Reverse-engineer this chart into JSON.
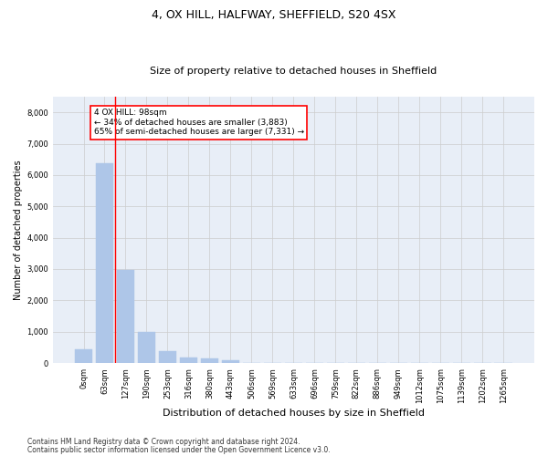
{
  "title": "4, OX HILL, HALFWAY, SHEFFIELD, S20 4SX",
  "subtitle": "Size of property relative to detached houses in Sheffield",
  "xlabel": "Distribution of detached houses by size in Sheffield",
  "ylabel": "Number of detached properties",
  "footnote1": "Contains HM Land Registry data © Crown copyright and database right 2024.",
  "footnote2": "Contains public sector information licensed under the Open Government Licence v3.0.",
  "bar_labels": [
    "0sqm",
    "63sqm",
    "127sqm",
    "190sqm",
    "253sqm",
    "316sqm",
    "380sqm",
    "443sqm",
    "506sqm",
    "569sqm",
    "633sqm",
    "696sqm",
    "759sqm",
    "822sqm",
    "886sqm",
    "949sqm",
    "1012sqm",
    "1075sqm",
    "1139sqm",
    "1202sqm",
    "1265sqm"
  ],
  "bar_values": [
    430,
    6390,
    2980,
    980,
    390,
    170,
    140,
    100,
    0,
    0,
    0,
    0,
    0,
    0,
    0,
    0,
    0,
    0,
    0,
    0,
    0
  ],
  "bar_color": "#aec6e8",
  "bar_edgecolor": "#aec6e8",
  "grid_color": "#cccccc",
  "bg_color": "#e8eef7",
  "red_line_x": 1.5,
  "annotation_text": "4 OX HILL: 98sqm\n← 34% of detached houses are smaller (3,883)\n65% of semi-detached houses are larger (7,331) →",
  "annotation_box_color": "white",
  "annotation_box_edgecolor": "red",
  "ylim": [
    0,
    8500
  ],
  "yticks": [
    0,
    1000,
    2000,
    3000,
    4000,
    5000,
    6000,
    7000,
    8000
  ],
  "title_fontsize": 9,
  "subtitle_fontsize": 8,
  "ylabel_fontsize": 7,
  "xlabel_fontsize": 8,
  "tick_fontsize": 6,
  "annot_fontsize": 6.5,
  "footnote_fontsize": 5.5
}
